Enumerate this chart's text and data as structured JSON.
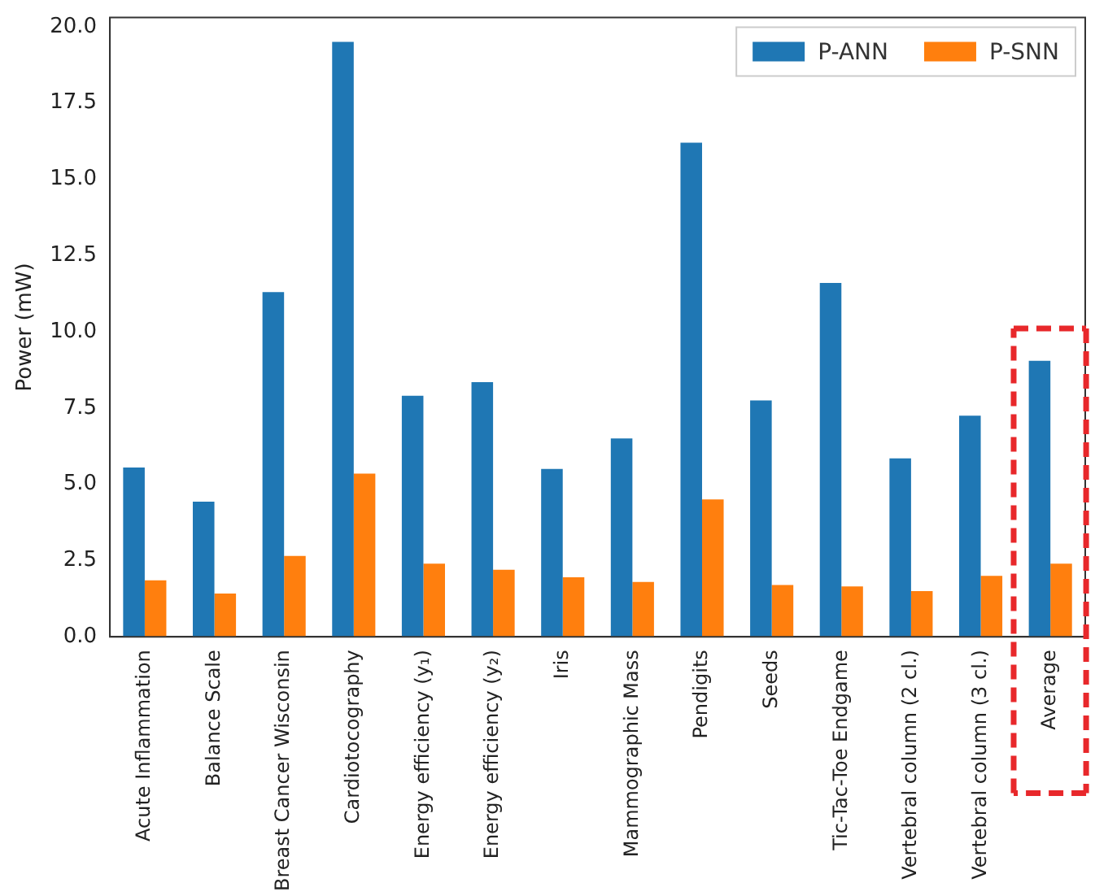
{
  "chart_data": {
    "type": "bar",
    "ylabel": "Power (mW)",
    "categories": [
      "Acute Inflammation",
      "Balance Scale",
      "Breast Cancer Wisconsin",
      "Cardiotocography",
      "Energy efficiency (y₁)",
      "Energy efficiency (y₂)",
      "Iris",
      "Mammographic Mass",
      "Pendigits",
      "Seeds",
      "Tic-Tac-Toe Endgame",
      "Vertebral column (2 cl.)",
      "Vertebral column (3 cl.)",
      "Average"
    ],
    "series": [
      {
        "name": "P-ANN",
        "color": "#1f77b4",
        "values": [
          5.55,
          4.43,
          11.3,
          19.5,
          7.9,
          8.35,
          5.5,
          6.5,
          16.2,
          7.75,
          11.6,
          5.85,
          7.25,
          9.05
        ]
      },
      {
        "name": "P-SNN",
        "color": "#ff7f0e",
        "values": [
          1.85,
          1.42,
          2.65,
          5.35,
          2.4,
          2.2,
          1.95,
          1.8,
          4.5,
          1.7,
          1.65,
          1.5,
          2.0,
          2.4
        ]
      }
    ],
    "ylim": [
      0,
      20.3
    ],
    "yticks": [
      {
        "value": 0,
        "label": "0.0"
      },
      {
        "value": 2.5,
        "label": "2.5"
      },
      {
        "value": 5,
        "label": "5.0"
      },
      {
        "value": 7.5,
        "label": "7.5"
      },
      {
        "value": 10,
        "label": "10.0"
      },
      {
        "value": 12.5,
        "label": "12.5"
      },
      {
        "value": 15,
        "label": "15.0"
      },
      {
        "value": 17.5,
        "label": "17.5"
      },
      {
        "value": 20,
        "label": "20.0"
      }
    ],
    "grid": false,
    "legend": "top right"
  }
}
